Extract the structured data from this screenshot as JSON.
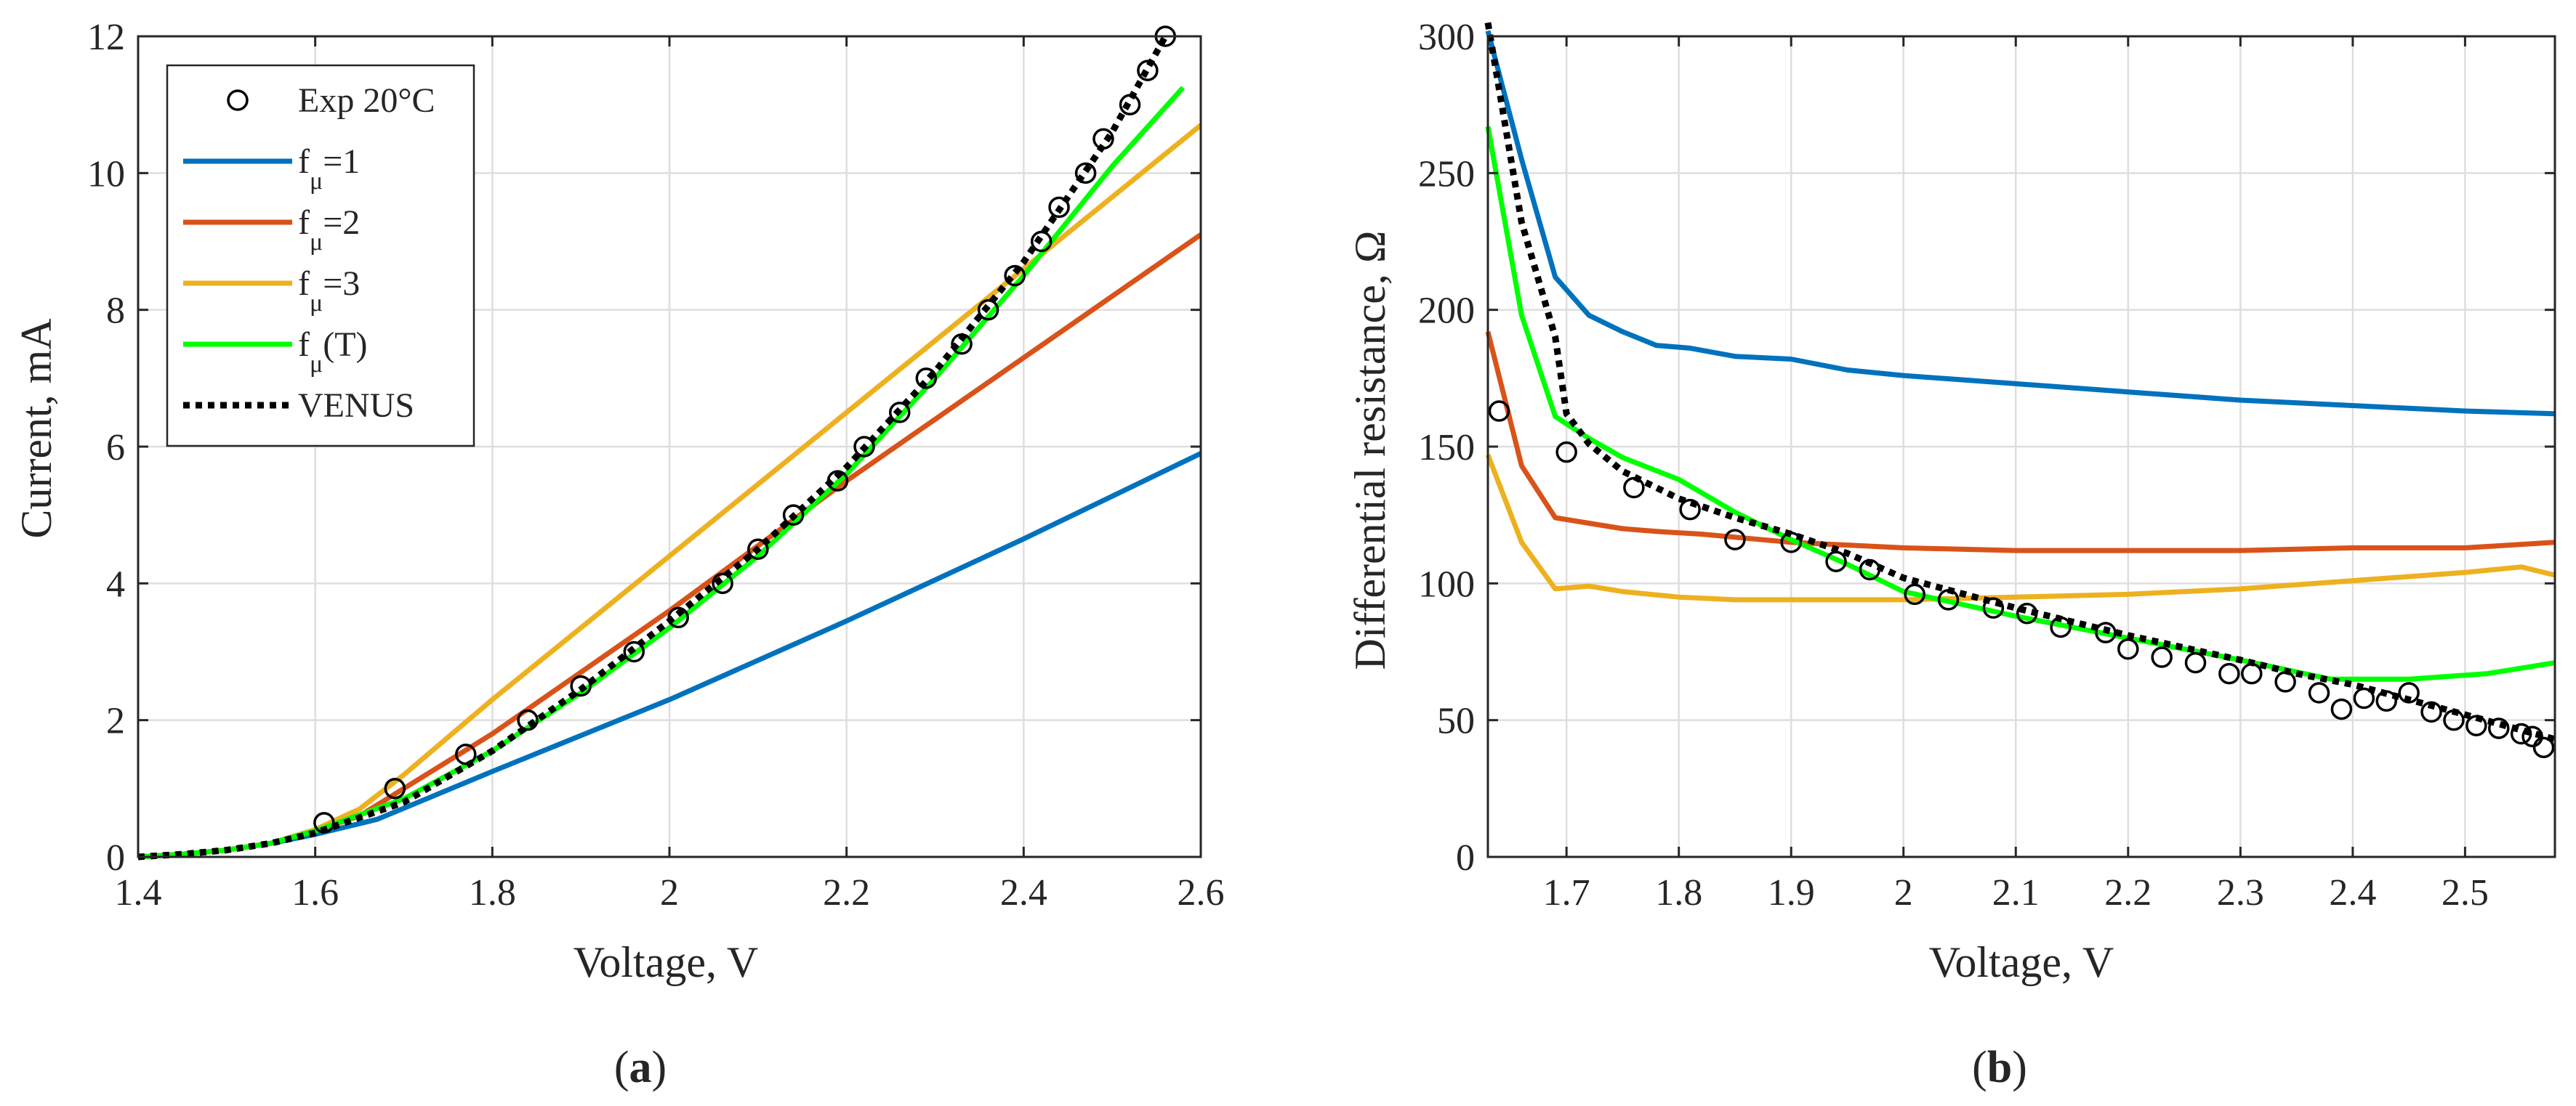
{
  "figure_labels": {
    "a_open": "(",
    "a_letter": "a",
    "a_close": ")",
    "b_open": "(",
    "b_letter": "b",
    "b_close": ")"
  },
  "colors": {
    "f1": "#0072BD",
    "f2": "#D95319",
    "f3": "#EDB120",
    "fT": "#00FF00",
    "venus": "#000000",
    "exp": "#000000",
    "grid": "#DEDEDE",
    "axis": "#262626"
  },
  "chart_data": [
    {
      "id": "a",
      "type": "line",
      "title": "",
      "xlabel": "Voltage, V",
      "ylabel": "Current, mA",
      "xlim": [
        1.4,
        2.6
      ],
      "ylim": [
        0,
        12
      ],
      "xticks": [
        1.4,
        1.6,
        1.8,
        2.0,
        2.2,
        2.4,
        2.6
      ],
      "xtick_labels": [
        "1.4",
        "1.6",
        "1.8",
        "2",
        "2.2",
        "2.4",
        "2.6"
      ],
      "yticks": [
        0,
        2,
        4,
        6,
        8,
        10,
        12
      ],
      "ytick_labels": [
        "0",
        "2",
        "4",
        "6",
        "8",
        "10",
        "12"
      ],
      "grid": true,
      "legend_position": "top-left",
      "legend": [
        {
          "key": "exp",
          "style": "marker",
          "main": "Exp 20°C",
          "sub": "",
          "suffix": ""
        },
        {
          "key": "f1",
          "style": "line",
          "main": "f",
          "sub": "μ",
          "suffix": "=1"
        },
        {
          "key": "f2",
          "style": "line",
          "main": "f",
          "sub": "μ",
          "suffix": "=2"
        },
        {
          "key": "f3",
          "style": "line",
          "main": "f",
          "sub": "μ",
          "suffix": "=3"
        },
        {
          "key": "fT",
          "style": "line",
          "main": "f",
          "sub": "μ",
          "suffix": "(T)"
        },
        {
          "key": "venus",
          "style": "dotted",
          "main": "VENUS",
          "sub": "",
          "suffix": ""
        }
      ],
      "series": [
        {
          "key": "f1",
          "name": "fμ=1",
          "x": [
            1.4,
            1.45,
            1.5,
            1.55,
            1.6,
            1.67,
            1.8,
            2.0,
            2.2,
            2.4,
            2.6
          ],
          "y": [
            0.0,
            0.04,
            0.1,
            0.2,
            0.33,
            0.55,
            1.25,
            2.3,
            3.45,
            4.65,
            5.9
          ]
        },
        {
          "key": "f2",
          "name": "fμ=2",
          "x": [
            1.4,
            1.45,
            1.5,
            1.55,
            1.6,
            1.65,
            1.7,
            1.8,
            2.0,
            2.2,
            2.4,
            2.6
          ],
          "y": [
            0.0,
            0.04,
            0.1,
            0.2,
            0.38,
            0.6,
            1.0,
            1.8,
            3.6,
            5.5,
            7.3,
            9.1
          ]
        },
        {
          "key": "f3",
          "name": "fμ=3",
          "x": [
            1.4,
            1.45,
            1.5,
            1.55,
            1.6,
            1.65,
            1.7,
            1.8,
            2.0,
            2.2,
            2.4,
            2.6
          ],
          "y": [
            0.0,
            0.04,
            0.1,
            0.2,
            0.4,
            0.7,
            1.2,
            2.3,
            4.4,
            6.5,
            8.6,
            10.7
          ]
        },
        {
          "key": "fT",
          "name": "fμ(T)",
          "x": [
            1.4,
            1.45,
            1.5,
            1.55,
            1.6,
            1.7,
            1.8,
            1.9,
            2.0,
            2.1,
            2.2,
            2.3,
            2.4,
            2.5,
            2.58
          ],
          "y": [
            0.0,
            0.04,
            0.1,
            0.2,
            0.38,
            0.85,
            1.55,
            2.4,
            3.35,
            4.4,
            5.6,
            7.0,
            8.5,
            10.1,
            11.25
          ]
        },
        {
          "key": "venus",
          "name": "VENUS",
          "style": "dotted",
          "x": [
            1.4,
            1.45,
            1.5,
            1.55,
            1.6,
            1.7,
            1.8,
            1.9,
            2.0,
            2.1,
            2.2,
            2.3,
            2.4,
            2.5,
            2.56
          ],
          "y": [
            0.0,
            0.04,
            0.1,
            0.2,
            0.35,
            0.8,
            1.55,
            2.45,
            3.45,
            4.5,
            5.7,
            7.1,
            8.7,
            10.6,
            12.0
          ]
        },
        {
          "key": "exp",
          "name": "Exp 20°C",
          "style": "marker",
          "x": [
            1.61,
            1.69,
            1.77,
            1.84,
            1.9,
            1.96,
            2.01,
            2.06,
            2.1,
            2.14,
            2.19,
            2.22,
            2.26,
            2.29,
            2.33,
            2.36,
            2.39,
            2.42,
            2.44,
            2.47,
            2.49,
            2.52,
            2.54,
            2.56
          ],
          "y": [
            0.5,
            1.0,
            1.5,
            2.0,
            2.5,
            3.0,
            3.5,
            4.0,
            4.5,
            5.0,
            5.5,
            6.0,
            6.5,
            7.0,
            7.5,
            8.0,
            8.5,
            9.0,
            9.5,
            10.0,
            10.5,
            11.0,
            11.5,
            12.0
          ]
        }
      ]
    },
    {
      "id": "b",
      "type": "line",
      "title": "",
      "xlabel": "Voltage, V",
      "ylabel": "Differential resistance, Ω",
      "xlim": [
        1.63,
        2.58
      ],
      "ylim": [
        0,
        300
      ],
      "xticks": [
        1.7,
        1.8,
        1.9,
        2.0,
        2.1,
        2.2,
        2.3,
        2.4,
        2.5
      ],
      "xtick_labels": [
        "1.7",
        "1.8",
        "1.9",
        "2",
        "2.1",
        "2.2",
        "2.3",
        "2.4",
        "2.5"
      ],
      "yticks": [
        0,
        50,
        100,
        150,
        200,
        250,
        300
      ],
      "ytick_labels": [
        "0",
        "50",
        "100",
        "150",
        "200",
        "250",
        "300"
      ],
      "grid": true,
      "series": [
        {
          "key": "f1",
          "name": "fμ=1",
          "x": [
            1.63,
            1.66,
            1.69,
            1.72,
            1.75,
            1.78,
            1.81,
            1.85,
            1.9,
            1.95,
            2.0,
            2.1,
            2.2,
            2.3,
            2.4,
            2.5,
            2.58
          ],
          "y": [
            302,
            255,
            212,
            198,
            192,
            187,
            186,
            183,
            182,
            178,
            176,
            173,
            170,
            167,
            165,
            163,
            162
          ]
        },
        {
          "key": "f2",
          "name": "fμ=2",
          "x": [
            1.63,
            1.66,
            1.69,
            1.72,
            1.75,
            1.78,
            1.82,
            1.9,
            2.0,
            2.1,
            2.2,
            2.3,
            2.4,
            2.5,
            2.58
          ],
          "y": [
            192,
            143,
            124,
            122,
            120,
            119,
            118,
            115,
            113,
            112,
            112,
            112,
            113,
            113,
            115
          ]
        },
        {
          "key": "f3",
          "name": "fμ=3",
          "x": [
            1.63,
            1.66,
            1.69,
            1.72,
            1.75,
            1.8,
            1.85,
            1.9,
            2.0,
            2.1,
            2.2,
            2.3,
            2.4,
            2.5,
            2.55,
            2.58
          ],
          "y": [
            147,
            115,
            98,
            99,
            97,
            95,
            94,
            94,
            94,
            95,
            96,
            98,
            101,
            104,
            106,
            103
          ]
        },
        {
          "key": "fT",
          "name": "fμ(T)",
          "x": [
            1.63,
            1.66,
            1.69,
            1.72,
            1.75,
            1.8,
            1.85,
            1.9,
            1.95,
            2.0,
            2.1,
            2.2,
            2.3,
            2.38,
            2.45,
            2.52,
            2.58
          ],
          "y": [
            267,
            198,
            161,
            153,
            146,
            138,
            126,
            116,
            107,
            97,
            88,
            80,
            72,
            65,
            65,
            67,
            71
          ]
        },
        {
          "key": "venus",
          "name": "VENUS",
          "style": "dotted",
          "x": [
            1.63,
            1.66,
            1.69,
            1.7,
            1.72,
            1.75,
            1.8,
            1.85,
            1.9,
            1.95,
            2.0,
            2.1,
            2.2,
            2.3,
            2.35,
            2.4,
            2.5,
            2.58
          ],
          "y": [
            305,
            232,
            190,
            162,
            151,
            141,
            131,
            124,
            118,
            111,
            102,
            91,
            81,
            72,
            67,
            63,
            52,
            43
          ]
        },
        {
          "key": "exp",
          "name": "Exp 20°C",
          "style": "marker",
          "x": [
            1.64,
            1.7,
            1.76,
            1.81,
            1.85,
            1.9,
            1.94,
            1.97,
            2.01,
            2.04,
            2.08,
            2.11,
            2.14,
            2.18,
            2.2,
            2.23,
            2.26,
            2.29,
            2.31,
            2.34,
            2.37,
            2.39,
            2.41,
            2.43,
            2.45,
            2.47,
            2.49,
            2.51,
            2.53,
            2.55,
            2.56,
            2.57
          ],
          "y": [
            163,
            148,
            135,
            127,
            116,
            115,
            108,
            105,
            96,
            94,
            91,
            89,
            84,
            82,
            76,
            73,
            71,
            67,
            67,
            64,
            60,
            54,
            58,
            57,
            60,
            53,
            50,
            48,
            47,
            45,
            44,
            40
          ]
        }
      ]
    }
  ]
}
